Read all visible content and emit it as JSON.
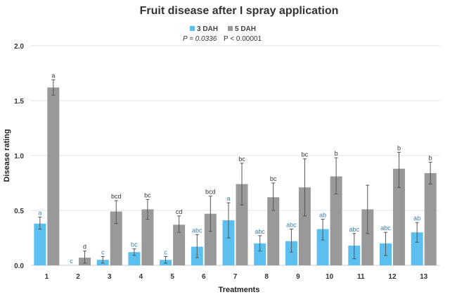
{
  "chart_data": {
    "type": "bar",
    "title": "Fruit disease after I spray application",
    "xlabel": "Treatments",
    "ylabel": "Disease rating",
    "ylim": [
      0,
      2.0
    ],
    "yticks": [
      "0.0",
      "0.5",
      "1.0",
      "1.5",
      "2.0"
    ],
    "grid": true,
    "legend_placement": "top-center",
    "categories": [
      "1",
      "2",
      "3",
      "4",
      "5",
      "6",
      "7",
      "8",
      "9",
      "10",
      "11",
      "12",
      "13"
    ],
    "series": [
      {
        "name": "3 DAH",
        "p_value": "P = 0.0336",
        "color": "#5bc0f0",
        "letter_color": "#3a7fb0",
        "values": [
          0.38,
          0.0,
          0.05,
          0.12,
          0.05,
          0.17,
          0.41,
          0.2,
          0.22,
          0.33,
          0.18,
          0.2,
          0.3
        ],
        "err_low": [
          0.33,
          0.0,
          0.02,
          0.09,
          0.02,
          0.07,
          0.25,
          0.13,
          0.12,
          0.23,
          0.06,
          0.09,
          0.21
        ],
        "err_high": [
          0.44,
          0.0,
          0.08,
          0.15,
          0.08,
          0.28,
          0.57,
          0.27,
          0.33,
          0.42,
          0.29,
          0.3,
          0.39
        ],
        "letters": [
          "a",
          "c",
          "c",
          "bc",
          "c",
          "abc",
          "a",
          "abc",
          "abc",
          "ab",
          "abc",
          "abc",
          "ab"
        ]
      },
      {
        "name": "5 DAH",
        "p_value": "P < 0.00001",
        "color": "#999999",
        "letter_color": "#333333",
        "values": [
          1.62,
          0.07,
          0.49,
          0.51,
          0.37,
          0.47,
          0.74,
          0.62,
          0.71,
          0.81,
          0.51,
          0.88,
          0.84
        ],
        "err_low": [
          1.55,
          0.02,
          0.38,
          0.42,
          0.3,
          0.31,
          0.55,
          0.5,
          0.45,
          0.65,
          0.29,
          0.71,
          0.74
        ],
        "err_high": [
          1.69,
          0.13,
          0.59,
          0.6,
          0.45,
          0.63,
          0.93,
          0.75,
          0.97,
          0.98,
          0.73,
          1.03,
          0.94
        ],
        "letters": [
          "a",
          "d",
          "bcd",
          "bc",
          "cd",
          "bcd",
          "bc",
          "bc",
          "bc",
          "b",
          "",
          "b",
          "b"
        ]
      }
    ]
  }
}
